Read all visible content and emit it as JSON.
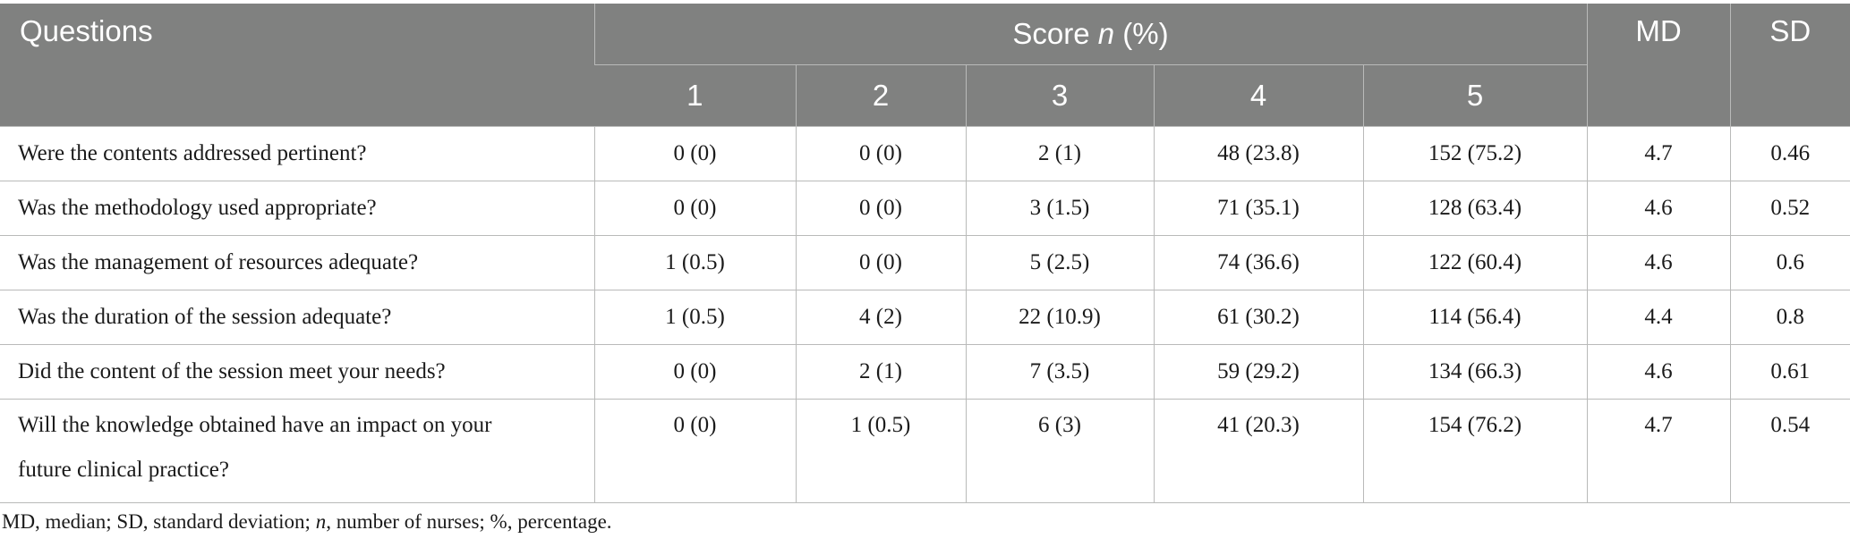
{
  "header": {
    "questions": "Questions",
    "score_prefix": "Score ",
    "score_n": "n",
    "score_suffix": " (%)",
    "score_levels": [
      "1",
      "2",
      "3",
      "4",
      "5"
    ],
    "md": "MD",
    "sd": "SD"
  },
  "rows": [
    {
      "question": "Were the contents addressed pertinent?",
      "s1": "0 (0)",
      "s2": "0 (0)",
      "s3": "2 (1)",
      "s4": "48 (23.8)",
      "s5": "152 (75.2)",
      "md": "4.7",
      "sd": "0.46"
    },
    {
      "question": "Was the methodology used appropriate?",
      "s1": "0 (0)",
      "s2": "0 (0)",
      "s3": "3 (1.5)",
      "s4": "71 (35.1)",
      "s5": "128 (63.4)",
      "md": "4.6",
      "sd": "0.52"
    },
    {
      "question": "Was the management of resources adequate?",
      "s1": "1 (0.5)",
      "s2": "0 (0)",
      "s3": "5 (2.5)",
      "s4": "74 (36.6)",
      "s5": "122 (60.4)",
      "md": "4.6",
      "sd": "0.6"
    },
    {
      "question": "Was the duration of the session adequate?",
      "s1": "1 (0.5)",
      "s2": "4 (2)",
      "s3": "22 (10.9)",
      "s4": "61 (30.2)",
      "s5": "114 (56.4)",
      "md": "4.4",
      "sd": "0.8"
    },
    {
      "question": "Did the content of the session meet your needs?",
      "s1": "0 (0)",
      "s2": "2 (1)",
      "s3": "7 (3.5)",
      "s4": "59 (29.2)",
      "s5": "134 (66.3)",
      "md": "4.6",
      "sd": "0.61"
    },
    {
      "question_line1": "Will the knowledge obtained have an impact on your",
      "question_line2": "future clinical practice?",
      "s1": "0 (0)",
      "s2": "1 (0.5)",
      "s3": "6 (3)",
      "s4": "41 (20.3)",
      "s5": "154 (76.2)",
      "md": "4.7",
      "sd": "0.54"
    }
  ],
  "footnote": {
    "part1": "MD, median; SD, standard deviation; ",
    "n": "n",
    "part2": ", number of nurses; %, percentage."
  }
}
